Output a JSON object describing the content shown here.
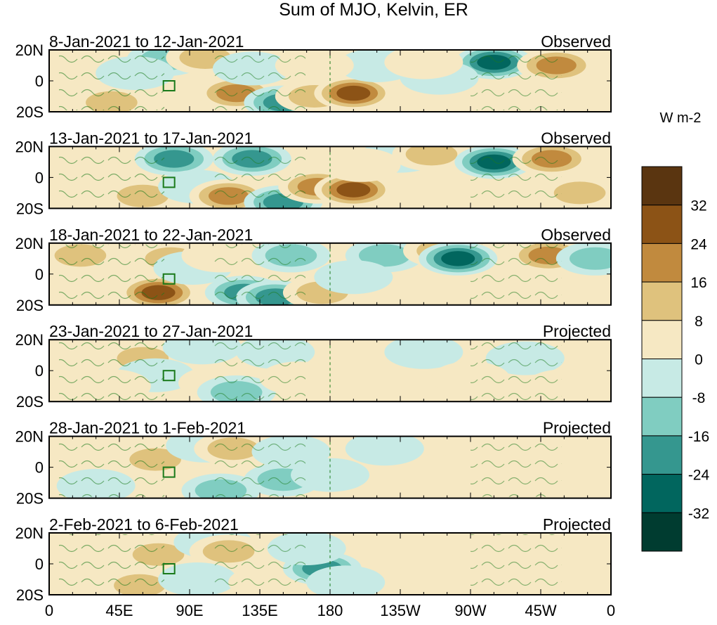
{
  "chart_data": {
    "type": "heatmap",
    "title": "Sum of MJO, Kelvin, ER",
    "units": "W m-2",
    "x_ticks": [
      "0",
      "45E",
      "90E",
      "135E",
      "180",
      "135W",
      "90W",
      "45W",
      "0"
    ],
    "y_ticks": [
      "20N",
      "0",
      "20S"
    ],
    "xlim": [
      0,
      360
    ],
    "ylim": [
      -20,
      20
    ],
    "colorbar": {
      "levels": [
        32,
        24,
        16,
        8,
        0,
        -8,
        -16,
        -24,
        -32
      ],
      "colors": [
        "#5a3510",
        "#8c5316",
        "#c18a3e",
        "#dfc27d",
        "#f6e8c3",
        "#c7eae5",
        "#80cdc1",
        "#35978f",
        "#01665e",
        "#003c30"
      ]
    },
    "panels": [
      {
        "period": "8-Jan-2021 to 12-Jan-2021",
        "status": "Observed"
      },
      {
        "period": "13-Jan-2021 to 17-Jan-2021",
        "status": "Observed"
      },
      {
        "period": "18-Jan-2021 to 22-Jan-2021",
        "status": "Observed"
      },
      {
        "period": "23-Jan-2021 to 27-Jan-2021",
        "status": "Projected"
      },
      {
        "period": "28-Jan-2021 to 1-Feb-2021",
        "status": "Projected"
      },
      {
        "period": "2-Feb-2021 to 6-Feb-2021",
        "status": "Projected"
      }
    ],
    "anomaly_centers": [
      [
        [
          75,
          14,
          -22
        ],
        [
          100,
          15,
          18
        ],
        [
          120,
          -8,
          24
        ],
        [
          150,
          -14,
          -28
        ],
        [
          170,
          -10,
          20
        ],
        [
          195,
          -8,
          36
        ],
        [
          210,
          10,
          -12
        ],
        [
          285,
          12,
          -34
        ],
        [
          325,
          10,
          28
        ],
        [
          40,
          -14,
          20
        ],
        [
          55,
          5,
          -10
        ],
        [
          130,
          8,
          -14
        ],
        [
          250,
          2,
          -10
        ],
        [
          240,
          12,
          10
        ],
        [
          170,
          10,
          12
        ]
      ],
      [
        [
          60,
          -12,
          22
        ],
        [
          80,
          12,
          -26
        ],
        [
          95,
          -6,
          -14
        ],
        [
          115,
          -12,
          26
        ],
        [
          130,
          12,
          -24
        ],
        [
          150,
          -16,
          -24
        ],
        [
          172,
          -6,
          30
        ],
        [
          195,
          -8,
          34
        ],
        [
          225,
          14,
          -12
        ],
        [
          245,
          15,
          22
        ],
        [
          285,
          10,
          -32
        ],
        [
          322,
          12,
          28
        ],
        [
          340,
          -10,
          16
        ],
        [
          10,
          5,
          12
        ],
        [
          200,
          8,
          10
        ]
      ],
      [
        [
          35,
          -5,
          14
        ],
        [
          70,
          -12,
          36
        ],
        [
          78,
          10,
          18
        ],
        [
          92,
          4,
          -14
        ],
        [
          110,
          12,
          14
        ],
        [
          125,
          -12,
          -30
        ],
        [
          145,
          -15,
          -28
        ],
        [
          155,
          12,
          -20
        ],
        [
          175,
          -12,
          16
        ],
        [
          215,
          12,
          -22
        ],
        [
          252,
          15,
          20
        ],
        [
          262,
          10,
          -32
        ],
        [
          320,
          12,
          28
        ],
        [
          350,
          10,
          -20
        ],
        [
          20,
          12,
          18
        ],
        [
          195,
          -2,
          -8
        ]
      ],
      [
        [
          60,
          8,
          16
        ],
        [
          68,
          -3,
          -14
        ],
        [
          98,
          15,
          -12
        ],
        [
          108,
          -8,
          14
        ],
        [
          120,
          -14,
          -22
        ],
        [
          145,
          12,
          -12
        ],
        [
          240,
          12,
          -10
        ],
        [
          305,
          8,
          -10
        ],
        [
          40,
          -10,
          12
        ],
        [
          160,
          -5,
          10
        ],
        [
          270,
          -5,
          6
        ],
        [
          330,
          -10,
          8
        ]
      ],
      [
        [
          68,
          5,
          18
        ],
        [
          100,
          14,
          -10
        ],
        [
          118,
          12,
          16
        ],
        [
          90,
          -12,
          14
        ],
        [
          110,
          -15,
          -18
        ],
        [
          150,
          -8,
          -16
        ],
        [
          155,
          10,
          -12
        ],
        [
          180,
          -5,
          -12
        ],
        [
          250,
          -3,
          8
        ],
        [
          305,
          6,
          8
        ],
        [
          30,
          -12,
          -10
        ],
        [
          215,
          12,
          -6
        ]
      ],
      [
        [
          70,
          6,
          18
        ],
        [
          58,
          -14,
          20
        ],
        [
          105,
          14,
          -10
        ],
        [
          115,
          8,
          16
        ],
        [
          95,
          -10,
          -10
        ],
        [
          140,
          -12,
          12
        ],
        [
          175,
          -3,
          -26
        ],
        [
          190,
          -12,
          -12
        ],
        [
          165,
          10,
          -10
        ],
        [
          250,
          -5,
          6
        ],
        [
          320,
          -12,
          8
        ],
        [
          300,
          12,
          6
        ],
        [
          20,
          10,
          10
        ]
      ]
    ]
  }
}
